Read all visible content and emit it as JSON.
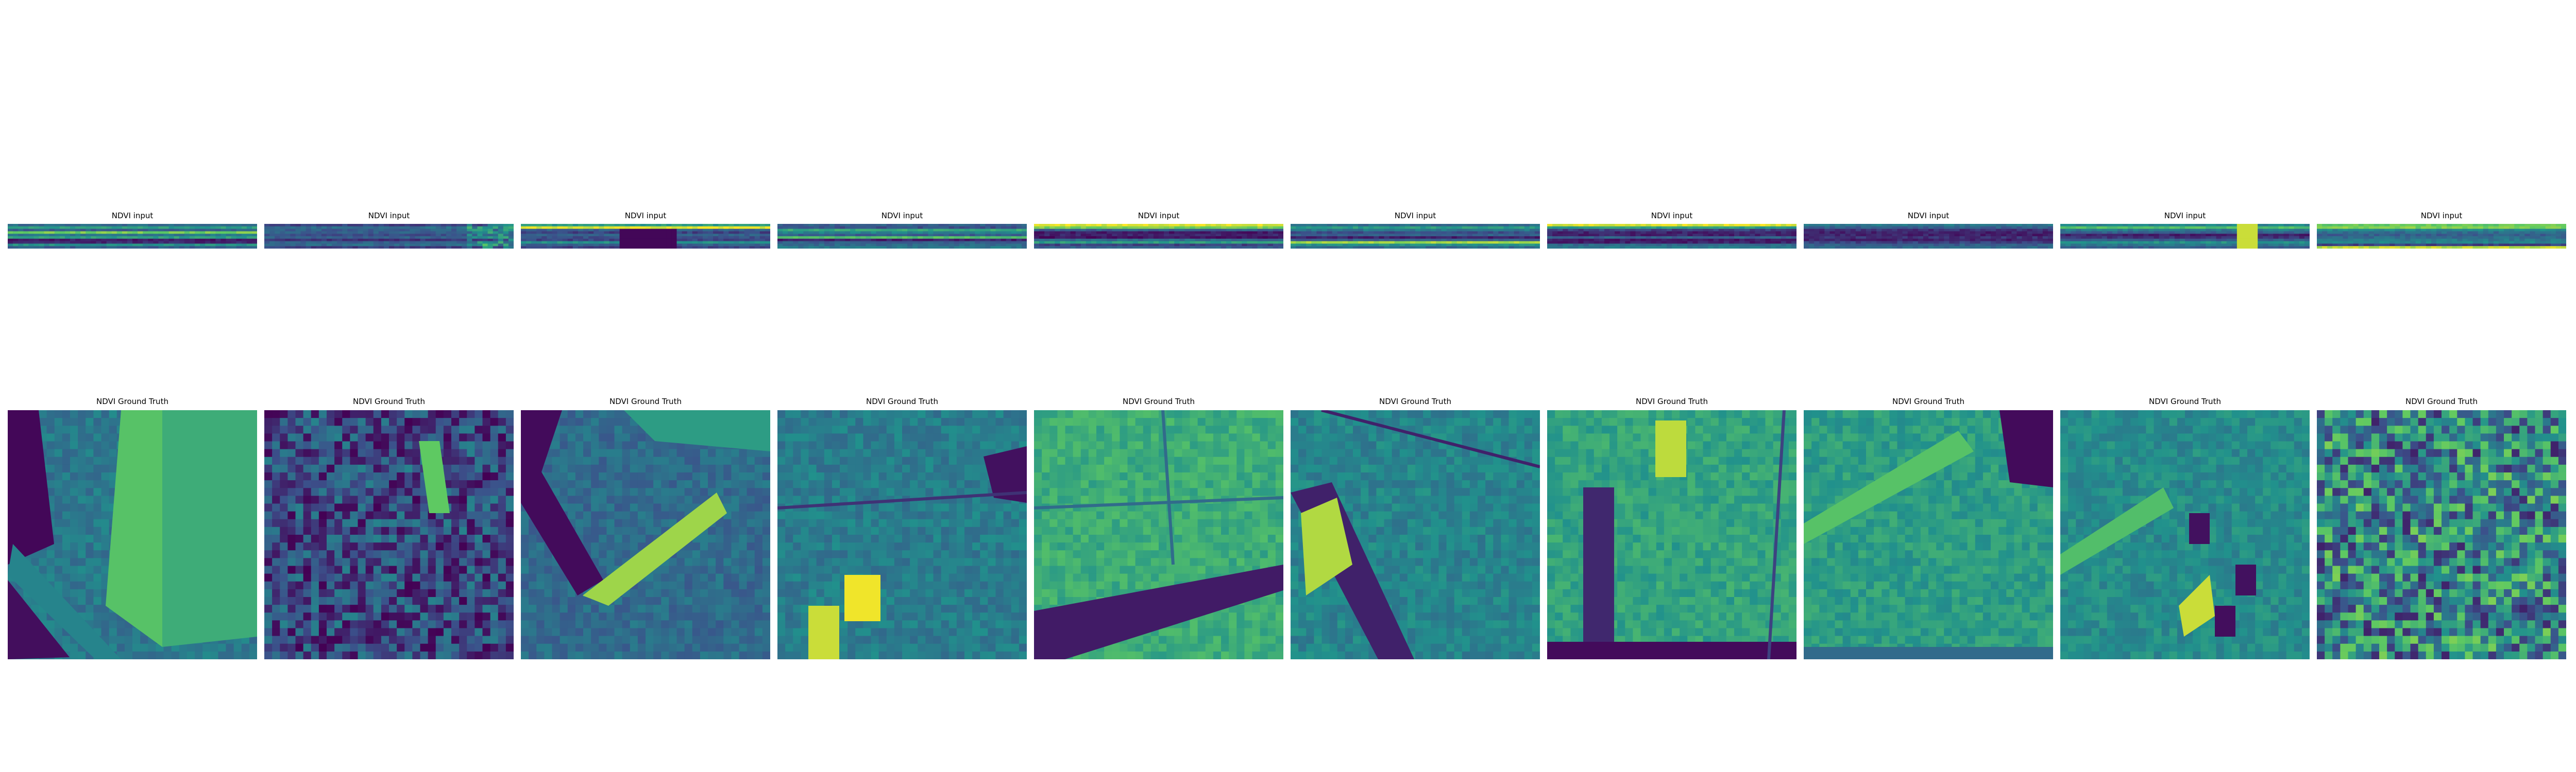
{
  "colormap": "viridis",
  "colors": {
    "viridis_stops": [
      "#440154",
      "#3b528b",
      "#21918c",
      "#5ec962",
      "#fde725"
    ],
    "background": "#ffffff",
    "title_text": "#000000"
  },
  "rows": [
    {
      "title": "NDVI input",
      "panels": [
        {
          "title": "NDVI input",
          "bands": [
            0.35,
            0.55,
            0.3,
            0.78,
            0.4,
            0.55,
            0.08,
            0.12,
            0.5,
            0.3
          ]
        },
        {
          "title": "NDVI input",
          "bands": [
            0.2,
            0.35,
            0.3,
            0.3,
            0.25,
            0.3,
            0.15,
            0.3,
            0.35,
            0.2
          ]
        },
        {
          "title": "NDVI input",
          "bands": [
            0.55,
            0.95,
            0.3,
            0.2,
            0.3,
            0.25,
            0.2,
            0.5,
            0.3,
            0.2
          ]
        },
        {
          "title": "NDVI input",
          "bands": [
            0.3,
            0.25,
            0.6,
            0.45,
            0.3,
            0.7,
            0.1,
            0.3,
            0.35,
            0.4
          ]
        },
        {
          "title": "NDVI input",
          "bands": [
            0.95,
            0.8,
            0.3,
            0.08,
            0.1,
            0.05,
            0.35,
            0.55,
            0.2,
            0.3
          ]
        },
        {
          "title": "NDVI input",
          "bands": [
            0.35,
            0.55,
            0.4,
            0.25,
            0.3,
            0.1,
            0.3,
            0.85,
            0.5,
            0.35
          ]
        },
        {
          "title": "NDVI input",
          "bands": [
            0.95,
            0.55,
            0.2,
            0.1,
            0.1,
            0.3,
            0.08,
            0.1,
            0.35,
            0.4
          ]
        },
        {
          "title": "NDVI input",
          "bands": [
            0.4,
            0.3,
            0.15,
            0.1,
            0.1,
            0.15,
            0.1,
            0.2,
            0.3,
            0.35
          ]
        },
        {
          "title": "NDVI input",
          "bands": [
            0.45,
            0.7,
            0.4,
            0.3,
            0.1,
            0.15,
            0.3,
            0.5,
            0.4,
            0.3
          ]
        },
        {
          "title": "NDVI input",
          "bands": [
            0.75,
            0.8,
            0.45,
            0.35,
            0.3,
            0.35,
            0.4,
            0.45,
            0.2,
            0.9
          ]
        }
      ]
    },
    {
      "title": "NDVI Ground Truth",
      "panels": [
        {
          "title": "NDVI Ground Truth",
          "base": 0.4
        },
        {
          "title": "NDVI Ground Truth",
          "base": 0.22
        },
        {
          "title": "NDVI Ground Truth",
          "base": 0.35
        },
        {
          "title": "NDVI Ground Truth",
          "base": 0.42
        },
        {
          "title": "NDVI Ground Truth",
          "base": 0.62
        },
        {
          "title": "NDVI Ground Truth",
          "base": 0.45
        },
        {
          "title": "NDVI Ground Truth",
          "base": 0.58
        },
        {
          "title": "NDVI Ground Truth",
          "base": 0.55
        },
        {
          "title": "NDVI Ground Truth",
          "base": 0.48
        },
        {
          "title": "NDVI Ground Truth",
          "base": 0.45
        }
      ]
    }
  ]
}
